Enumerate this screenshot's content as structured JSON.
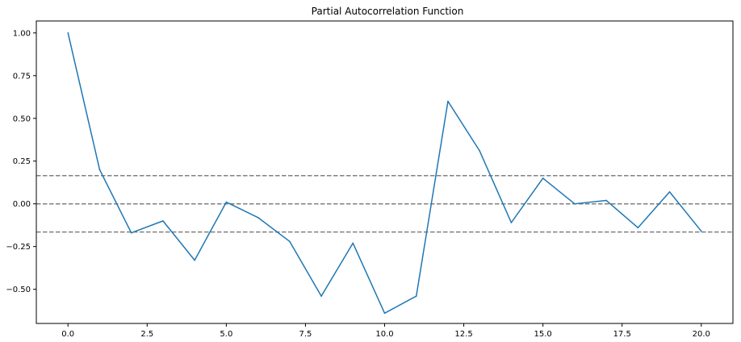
{
  "chart_data": {
    "type": "line",
    "title": "Partial Autocorrelation Function",
    "xlabel": "",
    "ylabel": "",
    "xlim": [
      -1,
      21
    ],
    "ylim": [
      -0.7,
      1.07
    ],
    "x_ticks": [
      0.0,
      2.5,
      5.0,
      7.5,
      10.0,
      12.5,
      15.0,
      17.5,
      20.0
    ],
    "x_tick_labels": [
      "0.0",
      "2.5",
      "5.0",
      "7.5",
      "10.0",
      "12.5",
      "15.0",
      "17.5",
      "20.0"
    ],
    "y_ticks": [
      1.0,
      0.75,
      0.5,
      0.25,
      0.0,
      -0.25,
      -0.5
    ],
    "y_tick_labels": [
      "1.00",
      "0.75",
      "0.50",
      "0.25",
      "0.00",
      "−0.25",
      "−0.50"
    ],
    "grid": false,
    "series": [
      {
        "color": "#1f77b4",
        "x": [
          0,
          1,
          2,
          3,
          4,
          5,
          6,
          7,
          8,
          9,
          10,
          11,
          12,
          13,
          14,
          15,
          16,
          17,
          18,
          19,
          20
        ],
        "values": [
          1.0,
          0.2,
          -0.17,
          -0.1,
          -0.33,
          0.01,
          -0.08,
          -0.22,
          -0.54,
          -0.23,
          -0.64,
          -0.54,
          0.6,
          0.31,
          -0.11,
          0.15,
          0.0,
          0.02,
          -0.14,
          0.07,
          -0.16
        ]
      }
    ],
    "reference_lines": [
      {
        "y": 0.165,
        "color": "#808080",
        "style": "dashed"
      },
      {
        "y": 0.0,
        "color": "#808080",
        "style": "dashed"
      },
      {
        "y": -0.165,
        "color": "#808080",
        "style": "dashed"
      }
    ]
  }
}
